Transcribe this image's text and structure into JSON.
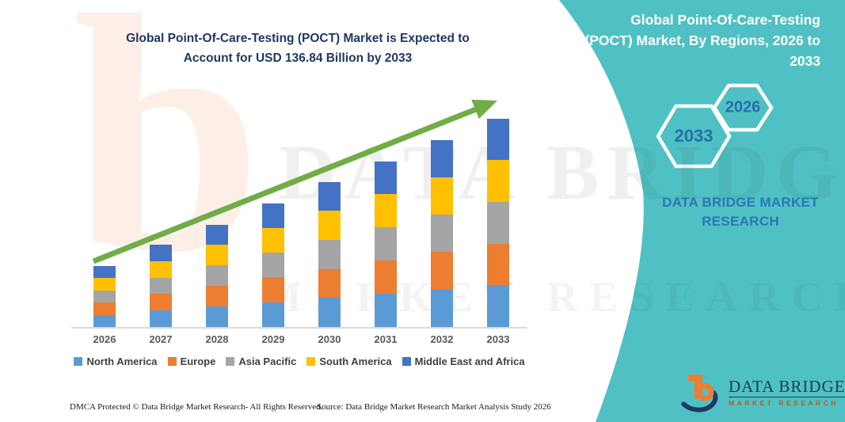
{
  "left": {
    "title_line1": "Global Point-Of-Care-Testing (POCT) Market is Expected to",
    "title_line2": "Account for USD 136.84 Billion by 2033"
  },
  "chart_data": {
    "type": "bar",
    "stacked": true,
    "title": "Global Point-Of-Care-Testing (POCT) Market is Expected to Account for USD 136.84 Billion by 2033",
    "unit": "USD Billion",
    "categories": [
      "2026",
      "2027",
      "2028",
      "2029",
      "2030",
      "2031",
      "2032",
      "2033"
    ],
    "series": [
      {
        "name": "North America",
        "color": "#5B9BD5",
        "values": [
          8.0,
          10.8,
          13.5,
          16.3,
          19.1,
          21.8,
          24.6,
          27.4
        ]
      },
      {
        "name": "Europe",
        "color": "#ED7D31",
        "values": [
          8.0,
          10.8,
          13.5,
          16.3,
          19.1,
          21.8,
          24.6,
          27.4
        ]
      },
      {
        "name": "Asia Pacific",
        "color": "#A5A5A5",
        "values": [
          8.0,
          10.8,
          13.5,
          16.3,
          19.1,
          21.8,
          24.6,
          27.4
        ]
      },
      {
        "name": "South America",
        "color": "#FFC000",
        "values": [
          8.0,
          10.8,
          13.5,
          16.3,
          19.1,
          21.8,
          24.6,
          27.4
        ]
      },
      {
        "name": "Middle East and Africa",
        "color": "#4472C4",
        "values": [
          8.0,
          10.8,
          13.5,
          16.3,
          19.1,
          21.8,
          24.6,
          27.4
        ]
      }
    ],
    "totals": [
      40.0,
      54.0,
      67.5,
      81.5,
      95.5,
      109.0,
      123.0,
      136.84
    ],
    "ylim": [
      0,
      140
    ],
    "gridlines": false,
    "y_axis_shown": false,
    "legend_position": "bottom",
    "trend_arrow": {
      "present": true,
      "color": "#70AD47",
      "direction": "up-right"
    }
  },
  "right": {
    "title_line1": "Global Point-Of-Care-Testing",
    "title_line2": "(POCT) Market, By Regions, 2026 to",
    "title_line3": "2033",
    "hex_2033": "2033",
    "hex_2026": "2026",
    "dbmr_line1": "DATA BRIDGE MARKET",
    "dbmr_line2": "RESEARCH",
    "panel_color": "#4FC1C4"
  },
  "watermarks": {
    "logo_b": "b",
    "main": "DATA BRIDGE",
    "sub": "MARKET RESEARCH"
  },
  "footer": {
    "dmca": "DMCA Protected © Data Bridge Market Research-  All Rights Reserved.",
    "source": "Source: Data Bridge Market Research  Market Analysis Study 2026"
  },
  "logo": {
    "name": "DATA BRIDGE",
    "tagline": "MARKET RESEARCH"
  }
}
